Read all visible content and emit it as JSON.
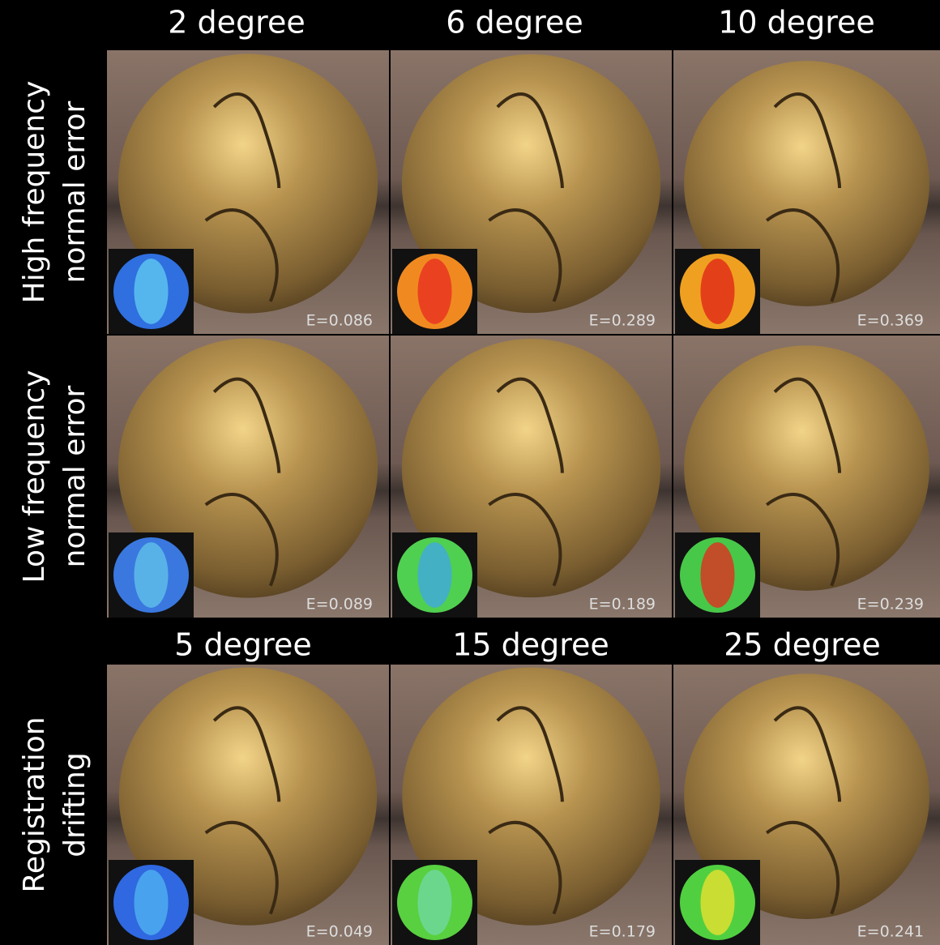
{
  "column_headers_top": [
    "2 degree",
    "6 degree",
    "10 degree"
  ],
  "column_headers_bottom": [
    "5 degree",
    "15 degree",
    "25 degree"
  ],
  "rows": [
    {
      "label": [
        "High frequency",
        "normal error"
      ],
      "cells": [
        {
          "error": "E=0.086",
          "map_colors": [
            "#2f6fe0",
            "#5fc8f0"
          ]
        },
        {
          "error": "E=0.289",
          "map_colors": [
            "#f08a20",
            "#e83020"
          ]
        },
        {
          "error": "E=0.369",
          "map_colors": [
            "#f0a020",
            "#e02818"
          ]
        }
      ]
    },
    {
      "label": [
        "Low frequency",
        "normal error"
      ],
      "cells": [
        {
          "error": "E=0.089",
          "map_colors": [
            "#3a78e0",
            "#60c0e8"
          ]
        },
        {
          "error": "E=0.189",
          "map_colors": [
            "#50d050",
            "#40a8e0"
          ]
        },
        {
          "error": "E=0.239",
          "map_colors": [
            "#48c848",
            "#e03020"
          ]
        }
      ]
    },
    {
      "label": [
        "Registration",
        "drifting"
      ],
      "cells": [
        {
          "error": "E=0.049",
          "map_colors": [
            "#2f68e0",
            "#50b0f0"
          ]
        },
        {
          "error": "E=0.179",
          "map_colors": [
            "#58d040",
            "#70d8a0"
          ]
        },
        {
          "error": "E=0.241",
          "map_colors": [
            "#50d040",
            "#e8e030"
          ]
        }
      ]
    }
  ]
}
